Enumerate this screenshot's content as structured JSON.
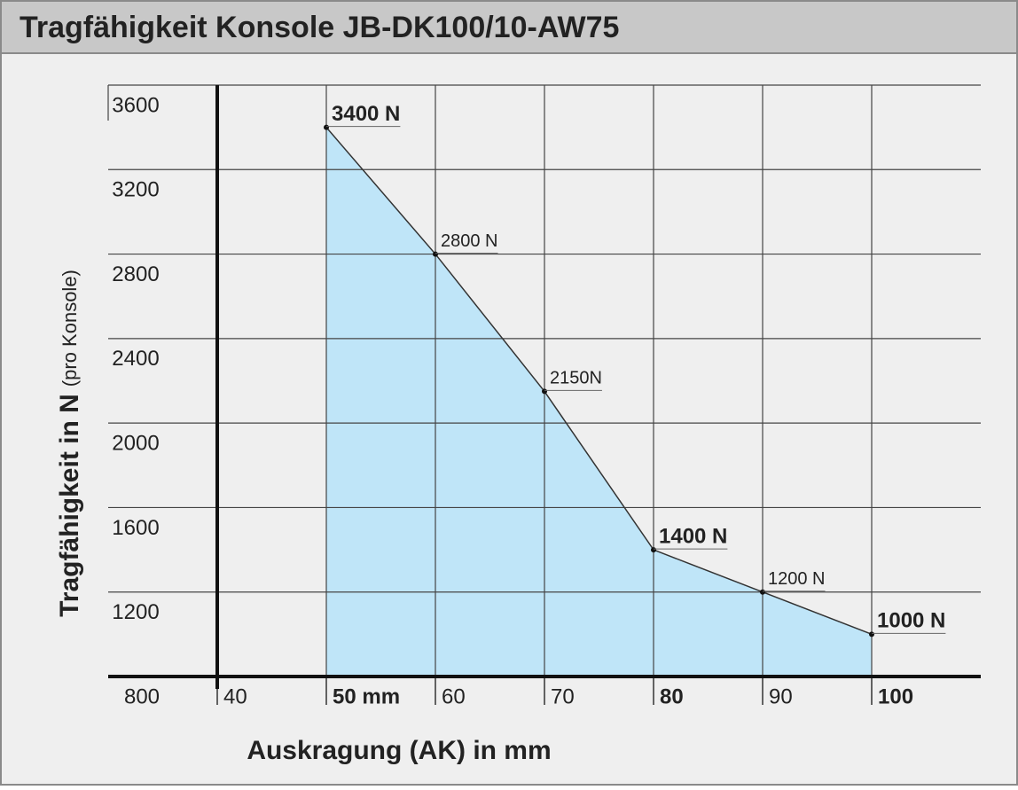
{
  "chart_data": {
    "type": "area",
    "title": "Tragfähigkeit Konsole JB-DK100/10-AW75",
    "y_label": "Tragfähigkeit in N",
    "y_label_note": "(pro Konsole)",
    "x_label": "Auskragung (AK) in mm",
    "x": [
      50,
      60,
      70,
      80,
      90,
      100
    ],
    "series": [
      {
        "color": "#bfe5f8",
        "line_color": "#333333",
        "values": [
          3400,
          2800,
          2150,
          1400,
          1200,
          1000
        ],
        "value_labels": [
          "3400 N",
          "2800 N",
          "2150N",
          "1400 N",
          "1200 N",
          "1000 N"
        ],
        "value_label_bold": [
          true,
          false,
          false,
          true,
          false,
          true
        ]
      }
    ],
    "xlim": [
      30,
      110
    ],
    "xticks": [
      40,
      {
        "value": 50,
        "label": "50 mm"
      },
      60,
      70,
      80,
      90,
      100
    ],
    "xtick_bold": [
      false,
      true,
      false,
      false,
      true,
      false,
      true
    ],
    "ylim": [
      800,
      3600
    ],
    "yticks": [
      800,
      1200,
      1600,
      2000,
      2400,
      2800,
      3200,
      3600
    ],
    "grid": true
  }
}
